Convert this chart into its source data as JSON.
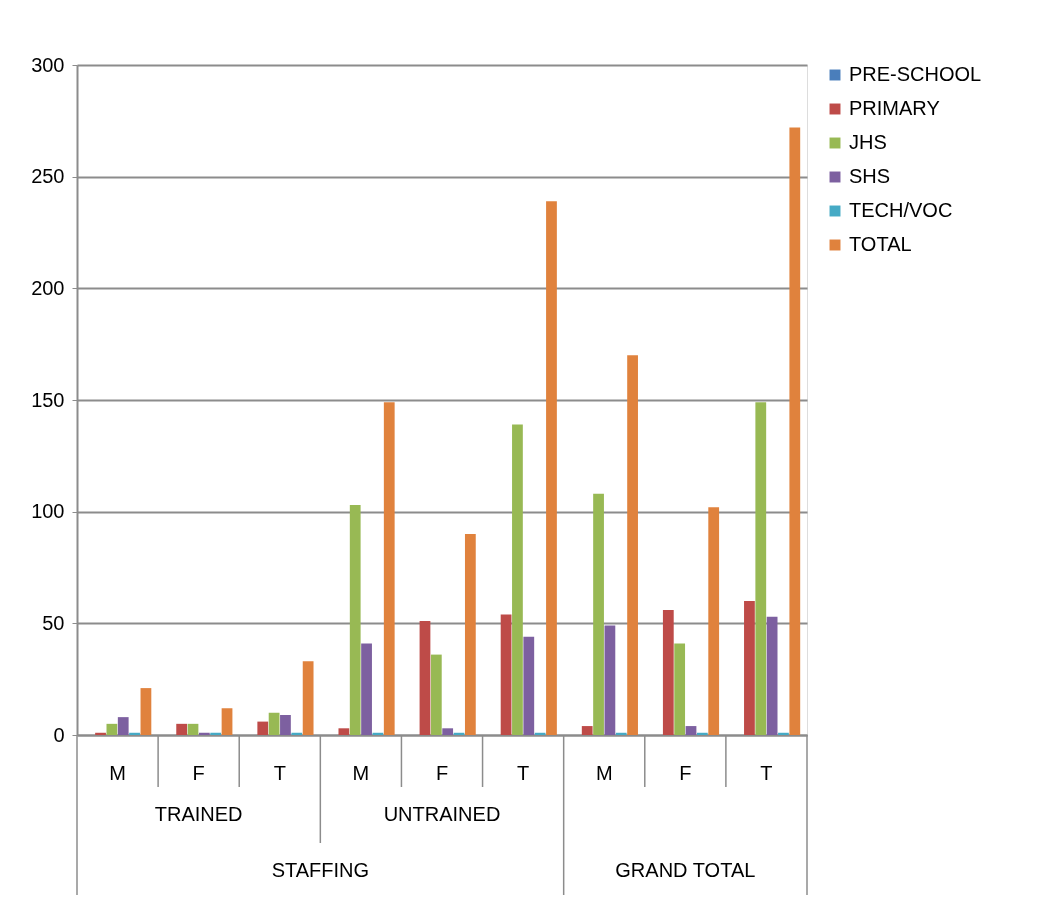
{
  "chart_data": {
    "type": "bar",
    "categories": [
      "M",
      "F",
      "T",
      "M",
      "F",
      "T",
      "M",
      "F",
      "T"
    ],
    "series": [
      {
        "name": "PRE-SCHOOL",
        "color": "#4a7ebb",
        "values": [
          0,
          0,
          0,
          0,
          0,
          0,
          0,
          0,
          0
        ]
      },
      {
        "name": "PRIMARY",
        "color": "#be4b48",
        "values": [
          1,
          5,
          6,
          3,
          51,
          54,
          4,
          56,
          60
        ]
      },
      {
        "name": "JHS",
        "color": "#98b954",
        "values": [
          5,
          5,
          10,
          103,
          36,
          139,
          108,
          41,
          149
        ]
      },
      {
        "name": "SHS",
        "color": "#7d60a0",
        "values": [
          8,
          1,
          9,
          41,
          3,
          44,
          49,
          4,
          53
        ]
      },
      {
        "name": "TECH/VOC",
        "color": "#46aac5",
        "values": [
          1,
          1,
          1,
          1,
          1,
          1,
          1,
          1,
          1
        ]
      },
      {
        "name": "TOTAL",
        "color": "#e0823d",
        "values": [
          21,
          12,
          33,
          149,
          90,
          239,
          170,
          102,
          272
        ]
      }
    ],
    "annotations": [
      "TRAINED",
      "UNTRAINED",
      "STAFFING",
      "GRAND TOTAL"
    ],
    "ylim": [
      0,
      300
    ],
    "yticks": [
      0,
      50,
      100,
      150,
      200,
      250,
      300
    ],
    "grid": "y",
    "legend": "right"
  }
}
